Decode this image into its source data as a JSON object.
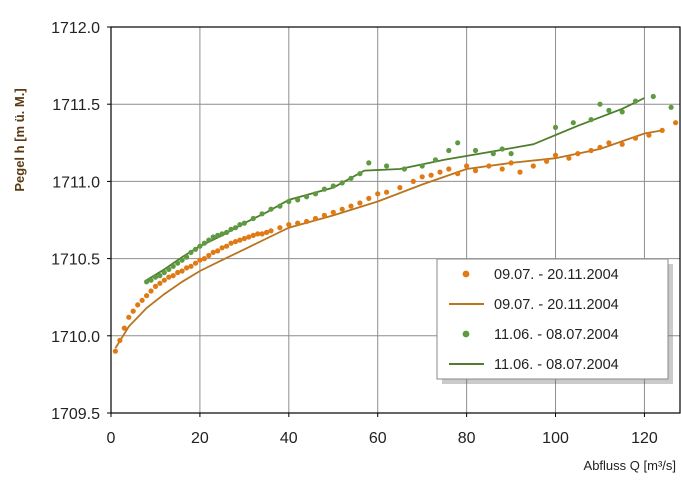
{
  "chart_data": {
    "type": "scatter",
    "title": "",
    "xlabel": "Abfluss Q [m³/s]",
    "ylabel": "Pegel h [m ü. M.]",
    "xlim": [
      0,
      128
    ],
    "ylim": [
      1709.5,
      1712.0
    ],
    "x_ticks": [
      "0",
      "20",
      "40",
      "60",
      "80",
      "100",
      "120"
    ],
    "y_ticks": [
      "1712.0",
      "1711.5",
      "1711.0",
      "1710.5",
      "1710.0",
      "1709.5"
    ],
    "grid": true,
    "legend_position": "bottom-right",
    "colors": {
      "orange": "#E07A14",
      "green": "#5E9A42",
      "orange_line": "#B8741E",
      "green_line": "#4E7E2C",
      "grid": "#8E8E8E",
      "frame": "#000000",
      "background": "#FFFFFF"
    },
    "series": [
      {
        "name": "09.07. - 20.11.2004",
        "kind": "points",
        "color": "#E07A14",
        "points": [
          [
            1,
            1709.9
          ],
          [
            2,
            1709.97
          ],
          [
            3,
            1710.05
          ],
          [
            4,
            1710.12
          ],
          [
            5,
            1710.16
          ],
          [
            6,
            1710.2
          ],
          [
            7,
            1710.23
          ],
          [
            8,
            1710.26
          ],
          [
            9,
            1710.29
          ],
          [
            10,
            1710.32
          ],
          [
            11,
            1710.34
          ],
          [
            12,
            1710.36
          ],
          [
            13,
            1710.38
          ],
          [
            14,
            1710.39
          ],
          [
            15,
            1710.41
          ],
          [
            16,
            1710.42
          ],
          [
            17,
            1710.44
          ],
          [
            18,
            1710.45
          ],
          [
            19,
            1710.47
          ],
          [
            20,
            1710.49
          ],
          [
            21,
            1710.5
          ],
          [
            22,
            1710.52
          ],
          [
            23,
            1710.54
          ],
          [
            24,
            1710.55
          ],
          [
            25,
            1710.57
          ],
          [
            26,
            1710.58
          ],
          [
            27,
            1710.6
          ],
          [
            28,
            1710.61
          ],
          [
            29,
            1710.62
          ],
          [
            30,
            1710.63
          ],
          [
            31,
            1710.64
          ],
          [
            32,
            1710.65
          ],
          [
            33,
            1710.66
          ],
          [
            34,
            1710.66
          ],
          [
            35,
            1710.67
          ],
          [
            36,
            1710.68
          ],
          [
            38,
            1710.7
          ],
          [
            40,
            1710.72
          ],
          [
            42,
            1710.73
          ],
          [
            44,
            1710.74
          ],
          [
            46,
            1710.76
          ],
          [
            48,
            1710.78
          ],
          [
            50,
            1710.8
          ],
          [
            52,
            1710.82
          ],
          [
            54,
            1710.84
          ],
          [
            56,
            1710.86
          ],
          [
            58,
            1710.89
          ],
          [
            60,
            1710.92
          ],
          [
            62,
            1710.93
          ],
          [
            65,
            1710.96
          ],
          [
            68,
            1711.0
          ],
          [
            70,
            1711.03
          ],
          [
            72,
            1711.04
          ],
          [
            74,
            1711.06
          ],
          [
            76,
            1711.08
          ],
          [
            78,
            1711.05
          ],
          [
            80,
            1711.1
          ],
          [
            82,
            1711.07
          ],
          [
            85,
            1711.1
          ],
          [
            88,
            1711.08
          ],
          [
            90,
            1711.12
          ],
          [
            92,
            1711.06
          ],
          [
            95,
            1711.1
          ],
          [
            98,
            1711.13
          ],
          [
            100,
            1711.17
          ],
          [
            103,
            1711.15
          ],
          [
            105,
            1711.18
          ],
          [
            108,
            1711.2
          ],
          [
            110,
            1711.22
          ],
          [
            112,
            1711.25
          ],
          [
            115,
            1711.24
          ],
          [
            118,
            1711.28
          ],
          [
            121,
            1711.3
          ],
          [
            124,
            1711.33
          ],
          [
            127,
            1711.38
          ]
        ]
      },
      {
        "name": "09.07. - 20.11.2004",
        "kind": "line",
        "color": "#B8741E",
        "points": [
          [
            1,
            1709.92
          ],
          [
            4,
            1710.06
          ],
          [
            8,
            1710.18
          ],
          [
            12,
            1710.27
          ],
          [
            16,
            1710.35
          ],
          [
            20,
            1710.42
          ],
          [
            25,
            1710.49
          ],
          [
            30,
            1710.56
          ],
          [
            35,
            1710.63
          ],
          [
            40,
            1710.7
          ],
          [
            50,
            1710.78
          ],
          [
            60,
            1710.87
          ],
          [
            70,
            1710.98
          ],
          [
            80,
            1711.08
          ],
          [
            90,
            1711.12
          ],
          [
            100,
            1711.15
          ],
          [
            110,
            1711.21
          ],
          [
            120,
            1711.31
          ],
          [
            124,
            1711.33
          ]
        ]
      },
      {
        "name": "11.06. - 08.07.2004",
        "kind": "points",
        "color": "#5E9A42",
        "points": [
          [
            8,
            1710.35
          ],
          [
            9,
            1710.36
          ],
          [
            10,
            1710.38
          ],
          [
            11,
            1710.39
          ],
          [
            12,
            1710.41
          ],
          [
            13,
            1710.43
          ],
          [
            14,
            1710.45
          ],
          [
            15,
            1710.47
          ],
          [
            16,
            1710.49
          ],
          [
            17,
            1710.51
          ],
          [
            18,
            1710.54
          ],
          [
            19,
            1710.56
          ],
          [
            20,
            1710.58
          ],
          [
            21,
            1710.6
          ],
          [
            22,
            1710.62
          ],
          [
            23,
            1710.64
          ],
          [
            24,
            1710.65
          ],
          [
            25,
            1710.66
          ],
          [
            26,
            1710.67
          ],
          [
            27,
            1710.69
          ],
          [
            28,
            1710.7
          ],
          [
            29,
            1710.72
          ],
          [
            30,
            1710.73
          ],
          [
            32,
            1710.76
          ],
          [
            34,
            1710.79
          ],
          [
            36,
            1710.82
          ],
          [
            38,
            1710.84
          ],
          [
            40,
            1710.87
          ],
          [
            42,
            1710.88
          ],
          [
            44,
            1710.9
          ],
          [
            46,
            1710.92
          ],
          [
            48,
            1710.95
          ],
          [
            50,
            1710.97
          ],
          [
            52,
            1710.99
          ],
          [
            54,
            1711.02
          ],
          [
            56,
            1711.05
          ],
          [
            58,
            1711.12
          ],
          [
            62,
            1711.1
          ],
          [
            66,
            1711.08
          ],
          [
            70,
            1711.1
          ],
          [
            73,
            1711.14
          ],
          [
            76,
            1711.2
          ],
          [
            78,
            1711.25
          ],
          [
            82,
            1711.2
          ],
          [
            86,
            1711.18
          ],
          [
            88,
            1711.21
          ],
          [
            90,
            1711.18
          ],
          [
            100,
            1711.35
          ],
          [
            104,
            1711.38
          ],
          [
            108,
            1711.4
          ],
          [
            110,
            1711.5
          ],
          [
            112,
            1711.46
          ],
          [
            115,
            1711.45
          ],
          [
            118,
            1711.52
          ],
          [
            122,
            1711.55
          ],
          [
            126,
            1711.48
          ]
        ]
      },
      {
        "name": "11.06. - 08.07.2004",
        "kind": "line",
        "color": "#4E7E2C",
        "points": [
          [
            8,
            1710.36
          ],
          [
            12,
            1710.43
          ],
          [
            16,
            1710.51
          ],
          [
            20,
            1710.58
          ],
          [
            25,
            1710.65
          ],
          [
            30,
            1710.73
          ],
          [
            35,
            1710.8
          ],
          [
            40,
            1710.88
          ],
          [
            50,
            1710.96
          ],
          [
            57,
            1711.07
          ],
          [
            65,
            1711.08
          ],
          [
            75,
            1711.14
          ],
          [
            85,
            1711.19
          ],
          [
            95,
            1711.24
          ],
          [
            105,
            1711.36
          ],
          [
            115,
            1711.47
          ],
          [
            120,
            1711.54
          ]
        ]
      }
    ]
  }
}
